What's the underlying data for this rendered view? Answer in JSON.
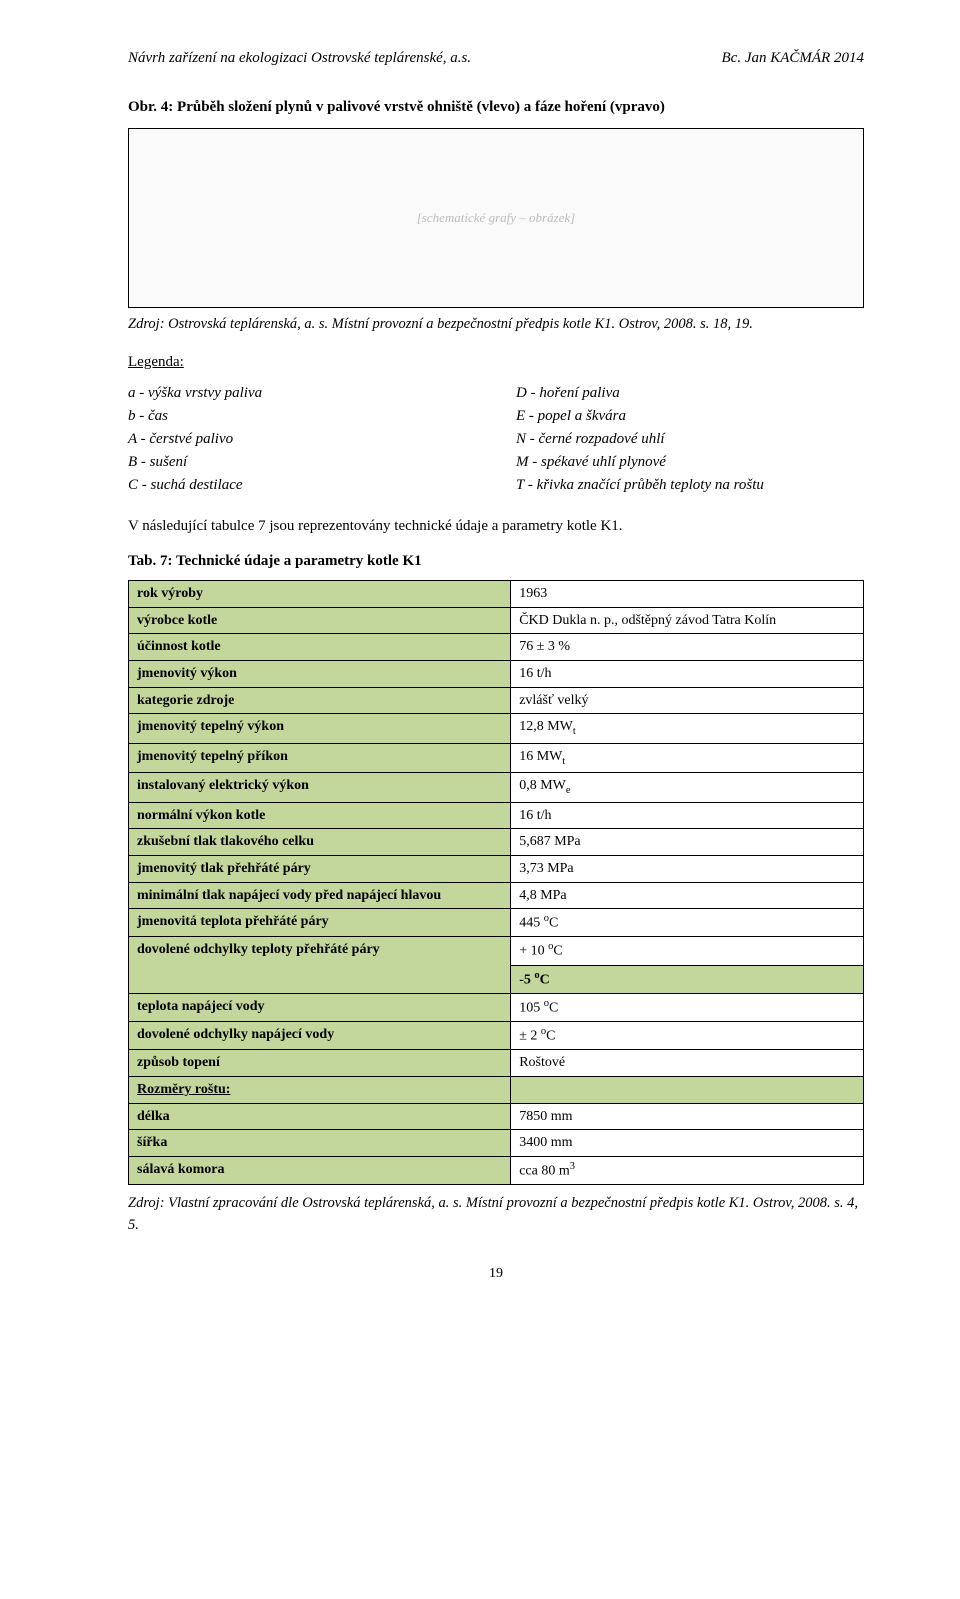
{
  "header": {
    "left": "Návrh zařízení na ekologizaci Ostrovské teplárenské, a.s.",
    "right": "Bc. Jan KAČMÁR 2014"
  },
  "figure": {
    "caption": "Obr. 4: Průběh složení plynů v palivové vrstvě ohniště (vlevo) a fáze hoření (vpravo)",
    "placeholder": "[schematické grafy – obrázek]",
    "source": "Zdroj: Ostrovská teplárenská, a. s. Místní provozní a bezpečnostní předpis kotle K1. Ostrov, 2008. s. 18, 19."
  },
  "legend": {
    "title": "Legenda:",
    "left": [
      "a - výška vrstvy paliva",
      "b - čas",
      "A - čerstvé palivo",
      "B - sušení",
      "C - suchá destilace"
    ],
    "right": [
      "D - hoření paliva",
      "E - popel a škvára",
      "N - černé rozpadové uhlí",
      "M - spékavé uhlí plynové",
      "T - křivka značící průběh teploty na roštu"
    ]
  },
  "paragraph": "V následující tabulce 7 jsou reprezentovány technické údaje a parametry kotle K1.",
  "table": {
    "caption": "Tab. 7: Technické údaje a parametry kotle K1",
    "header_bg": "#c3d69b",
    "rows": [
      {
        "label": "rok výroby",
        "value": "1963"
      },
      {
        "label": "výrobce kotle",
        "value": "ČKD Dukla n. p., odštěpný závod Tatra Kolín"
      },
      {
        "label": "účinnost kotle",
        "value": "76 ± 3 %"
      },
      {
        "label": "jmenovitý výkon",
        "value": "16 t/h"
      },
      {
        "label": "kategorie zdroje",
        "value": "zvlášť velký"
      },
      {
        "label": "jmenovitý tepelný výkon",
        "value_html": "12,8 MW<sub>t</sub>"
      },
      {
        "label": "jmenovitý tepelný příkon",
        "value_html": "16 MW<sub>t</sub>"
      },
      {
        "label": "instalovaný elektrický výkon",
        "value_html": "0,8 MW<sub>e</sub>"
      },
      {
        "label": "normální výkon kotle",
        "value": "16 t/h"
      },
      {
        "label": "zkušební tlak tlakového celku",
        "value": "5,687 MPa"
      },
      {
        "label": "jmenovitý tlak přehřáté páry",
        "value": "3,73 MPa"
      },
      {
        "label": "minimální tlak napájecí vody před napájecí hlavou",
        "value": "4,8 MPa"
      },
      {
        "label": "jmenovitá teplota přehřáté páry",
        "value_html": "445 <sup>o</sup>C"
      },
      {
        "label": "dovolené odchylky teploty přehřáté páry",
        "rowspan": 2,
        "value_html": "+ 10 <sup>o</sup>C"
      },
      {
        "value_html": "-5 <sup>o</sup>C",
        "continuation": true
      },
      {
        "label": "teplota napájecí vody",
        "value_html": "105 <sup>o</sup>C"
      },
      {
        "label": "dovolené odchylky napájecí vody",
        "value_html": "± 2 <sup>o</sup>C"
      },
      {
        "label": "způsob topení",
        "value": "Roštové"
      },
      {
        "label_html": "<u>Rozměry roštu:</u>",
        "section": true
      },
      {
        "label": "délka",
        "value": "7850 mm"
      },
      {
        "label": "šířka",
        "value": "3400 mm"
      },
      {
        "label": "sálavá komora",
        "value_html": "cca 80 m<sup>3</sup>"
      }
    ]
  },
  "footer_source": "Zdroj: Vlastní zpracování dle Ostrovská teplárenská, a. s. Místní provozní a bezpečnostní předpis kotle K1. Ostrov, 2008. s. 4, 5.",
  "page_number": "19"
}
